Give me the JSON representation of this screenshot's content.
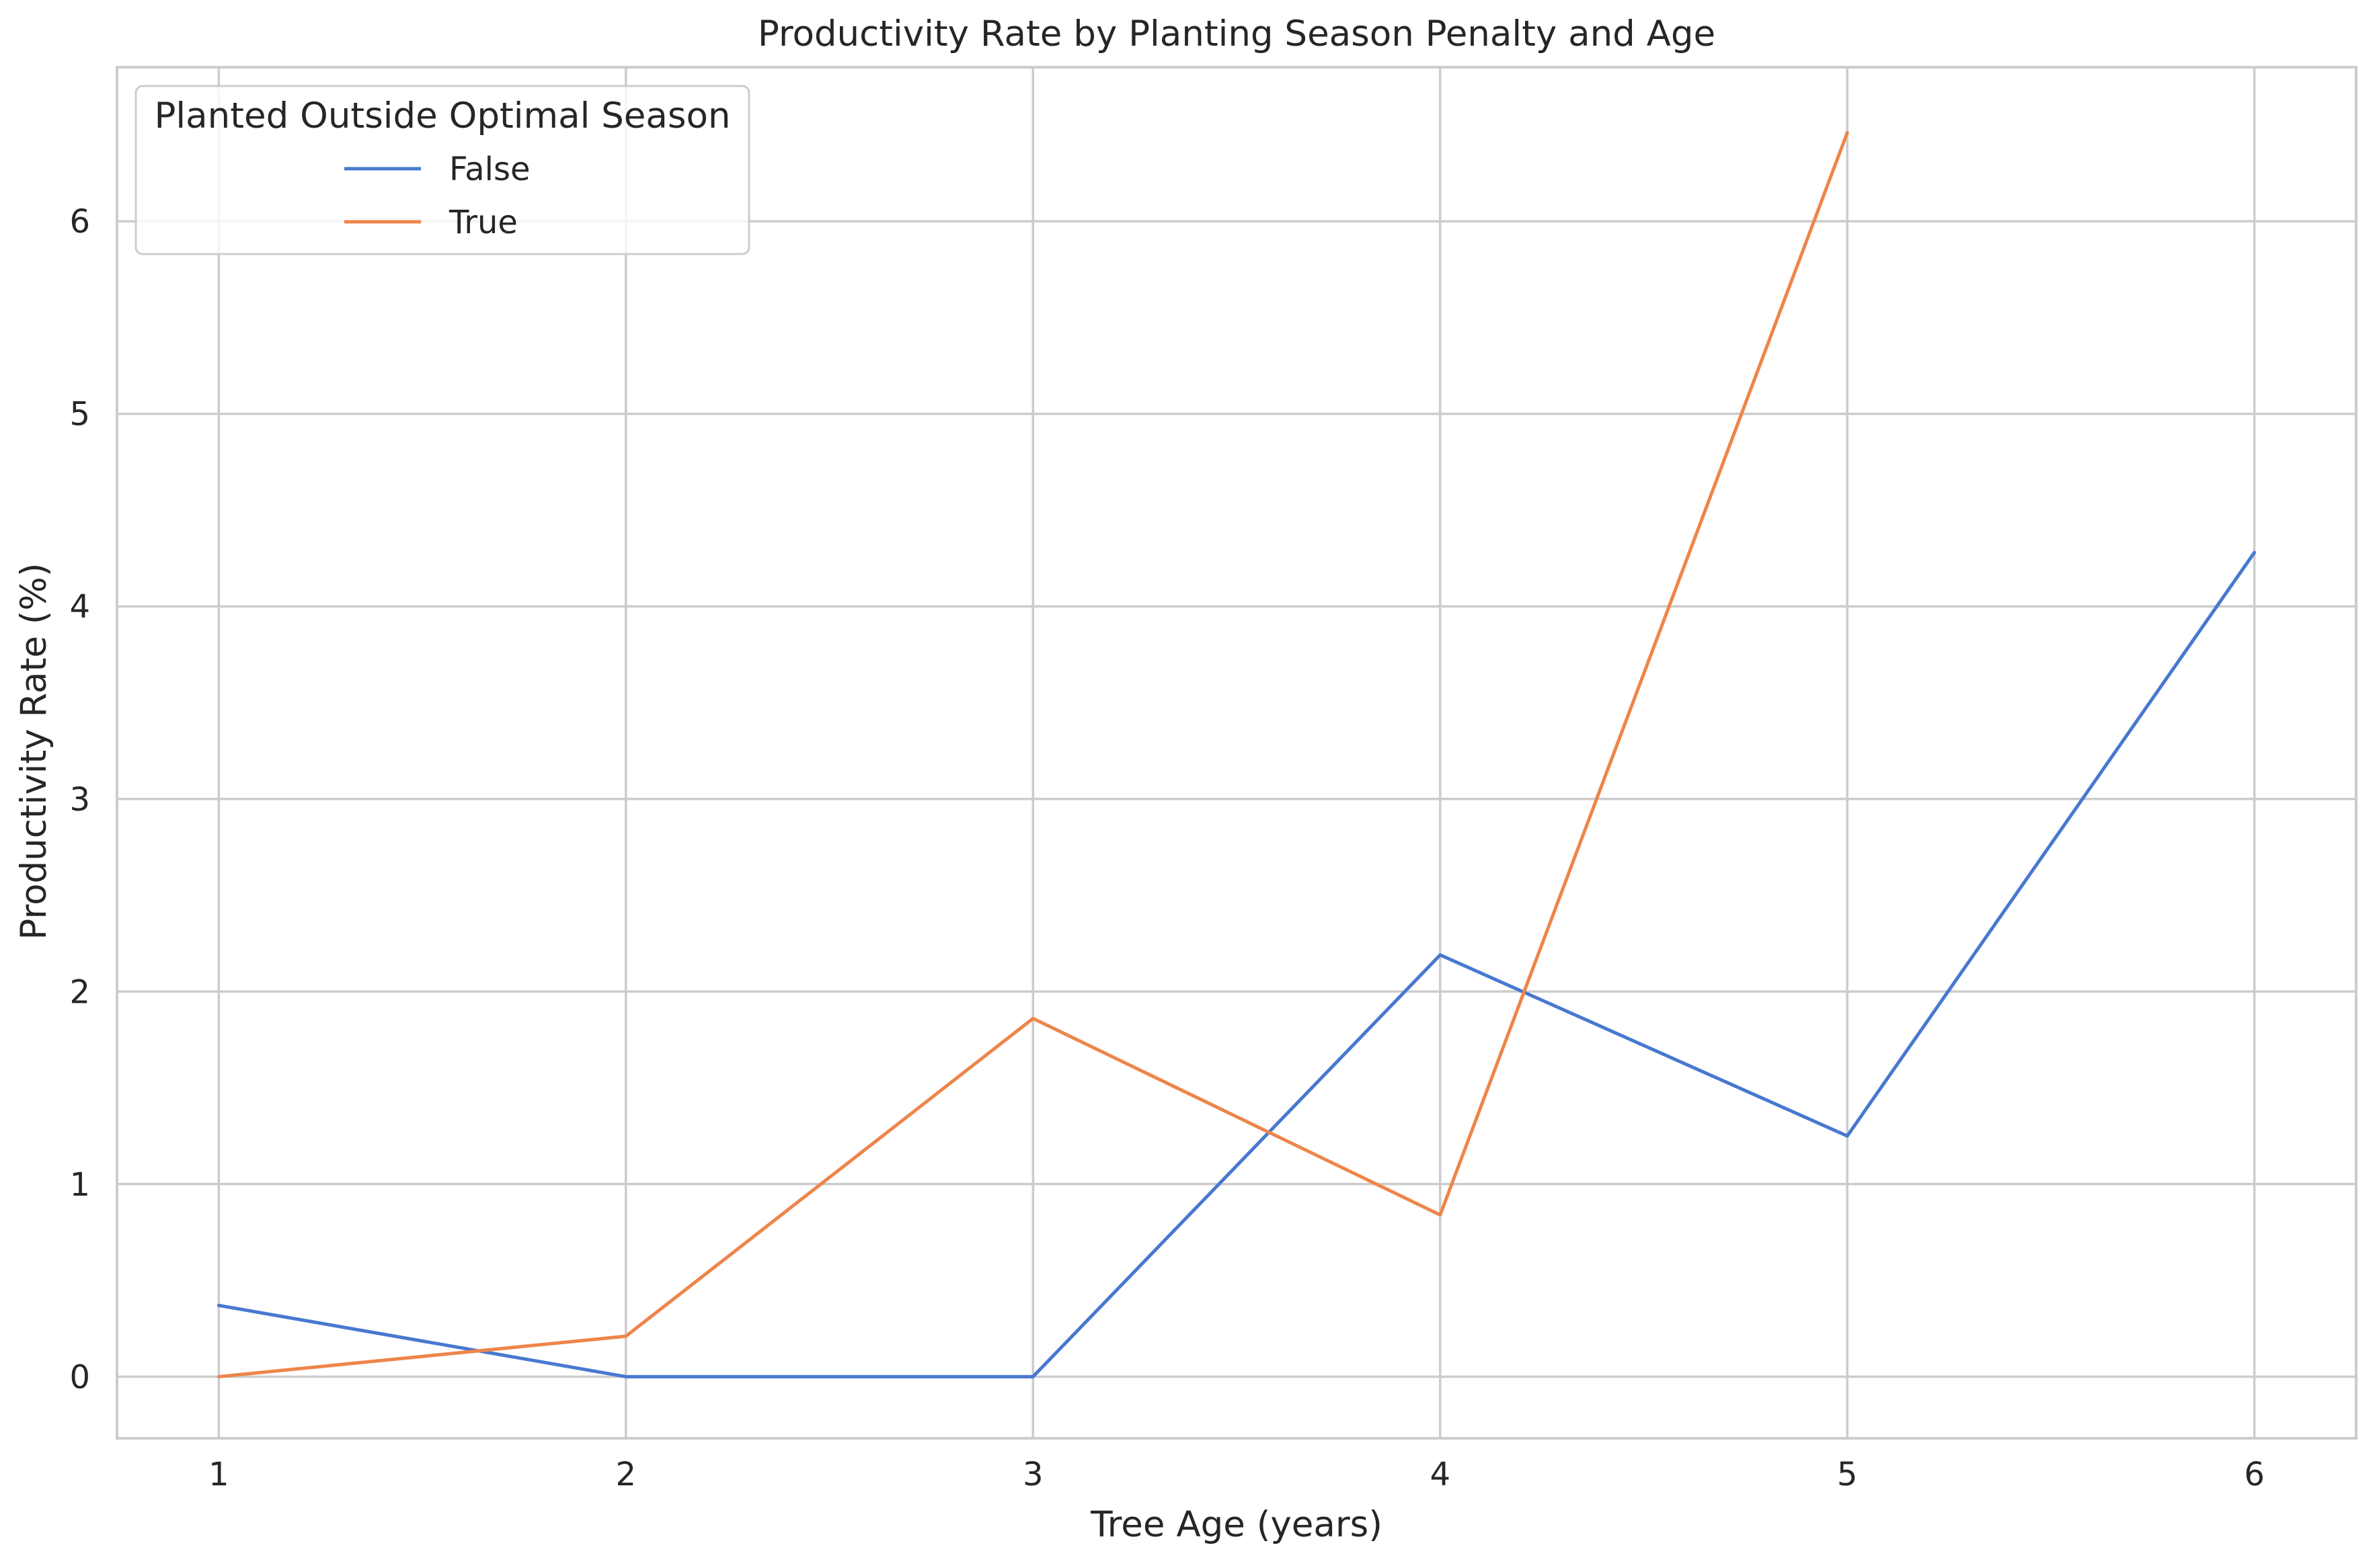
{
  "chart_data": {
    "type": "line",
    "title": "Productivity Rate by Planting Season Penalty and Age",
    "xlabel": "Tree Age (years)",
    "ylabel": "Productivity Rate (%)",
    "x": [
      1,
      2,
      3,
      4,
      5,
      6
    ],
    "x_ticks": [
      "1",
      "2",
      "3",
      "4",
      "5",
      "6"
    ],
    "y_ticks": [
      "0",
      "1",
      "2",
      "3",
      "4",
      "5",
      "6"
    ],
    "xlim": [
      0.75,
      6.25
    ],
    "ylim": [
      -0.32,
      6.8
    ],
    "grid": true,
    "legend": {
      "title": "Planted Outside Optimal Season",
      "placement": "top-left"
    },
    "series": [
      {
        "name": "False",
        "color": "#4878d0",
        "x": [
          1,
          2,
          3,
          4,
          5,
          6
        ],
        "values": [
          0.37,
          0.0,
          0.0,
          2.19,
          1.25,
          4.28
        ]
      },
      {
        "name": "True",
        "color": "#ee854a",
        "x": [
          1,
          2,
          3,
          4,
          5
        ],
        "values": [
          0.0,
          0.21,
          1.86,
          0.84,
          6.46
        ]
      }
    ]
  }
}
